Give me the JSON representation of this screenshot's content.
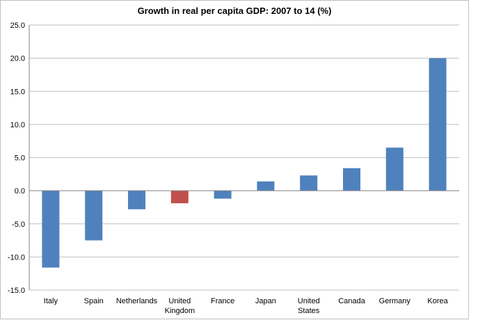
{
  "chart_data": {
    "type": "bar",
    "title": "Growth in real per capita GDP: 2007 to 14 (%)",
    "xlabel": "",
    "ylabel": "",
    "categories": [
      [
        "Italy"
      ],
      [
        "Spain"
      ],
      [
        "Netherlands"
      ],
      [
        "United",
        "Kingdom"
      ],
      [
        "France"
      ],
      [
        "Japan"
      ],
      [
        "United",
        "States"
      ],
      [
        "Canada"
      ],
      [
        "Germany"
      ],
      [
        "Korea"
      ]
    ],
    "values": [
      -11.6,
      -7.5,
      -2.8,
      -1.9,
      -1.2,
      1.4,
      2.3,
      3.4,
      6.5,
      20.0
    ],
    "ylim": [
      -15,
      25
    ],
    "ytick_step": 5,
    "ytick_labels": [
      "-15.0",
      "-10.0",
      "-5.0",
      "0.0",
      "5.0",
      "10.0",
      "15.0",
      "20.0",
      "25.0"
    ],
    "grid": true,
    "legend": "none",
    "colors": {
      "default": "#4f81bd",
      "highlight": "#c0504d",
      "highlight_index": 3,
      "grid": "#bfbfbf",
      "axis": "#868686"
    }
  }
}
